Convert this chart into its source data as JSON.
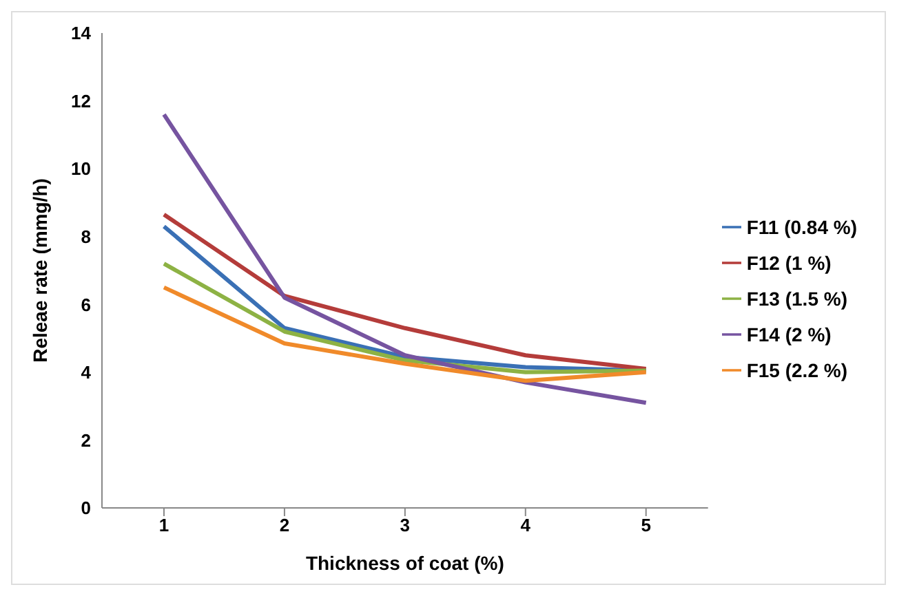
{
  "chart_data": {
    "type": "line",
    "xlabel": "Thickness of coat (%)",
    "ylabel": "Releae rate (mmg/h)",
    "categories": [
      "1",
      "2",
      "3",
      "4",
      "5"
    ],
    "series": [
      {
        "name": "F11 (0.84 %)",
        "color": "#3a70b5",
        "values": [
          8.3,
          5.3,
          4.45,
          4.15,
          4.05
        ]
      },
      {
        "name": "F12 (1 %)",
        "color": "#b43c3a",
        "values": [
          8.65,
          6.25,
          5.3,
          4.5,
          4.1
        ]
      },
      {
        "name": "F13 (1.5 %)",
        "color": "#8db244",
        "values": [
          7.2,
          5.2,
          4.35,
          4.0,
          4.05
        ]
      },
      {
        "name": "F14 (2 %)",
        "color": "#7654a0",
        "values": [
          11.6,
          6.2,
          4.5,
          3.7,
          3.1
        ]
      },
      {
        "name": "F15 (2.2 %)",
        "color": "#f08a2a",
        "values": [
          6.5,
          4.85,
          4.25,
          3.75,
          4.0
        ]
      }
    ],
    "ylim": [
      0,
      14
    ],
    "yticks": [
      0,
      2,
      4,
      6,
      8,
      10,
      12,
      14
    ],
    "grid": false,
    "legend": "right",
    "marker": "none"
  }
}
